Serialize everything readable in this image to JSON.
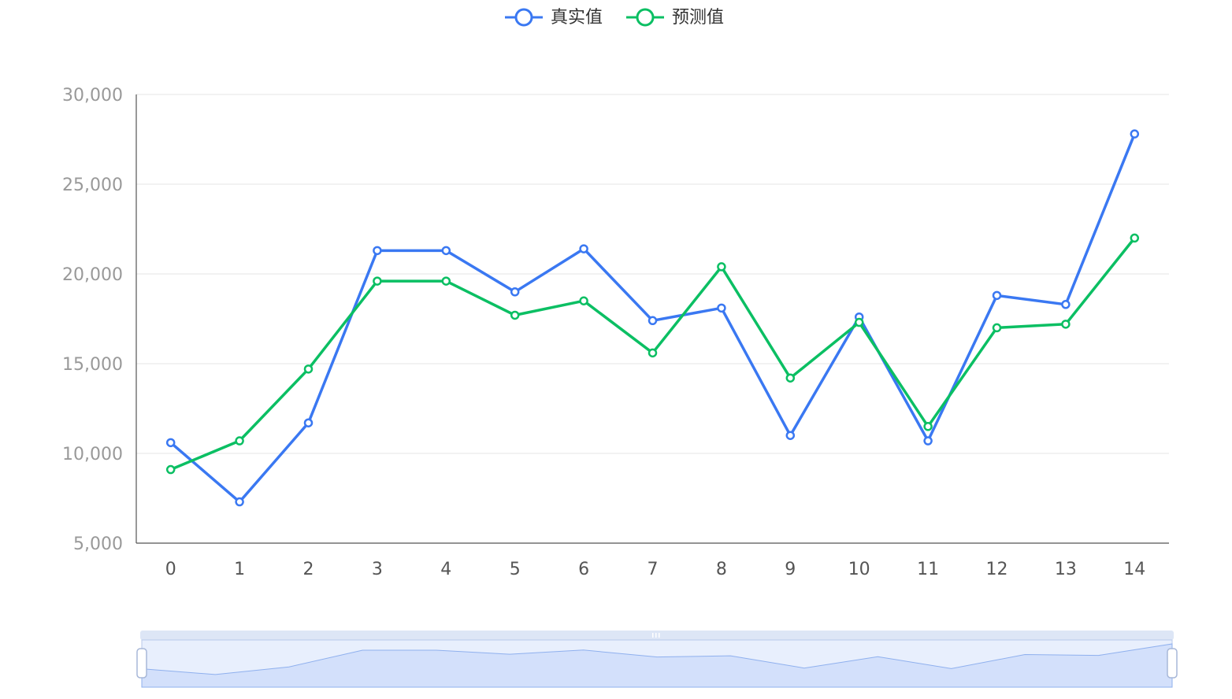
{
  "legend": {
    "items": [
      {
        "label": "真实值",
        "color": "#3a78f2",
        "icon": "circle-line-icon"
      },
      {
        "label": "预测值",
        "color": "#0bbf63",
        "icon": "circle-line-icon"
      }
    ]
  },
  "chart_data": {
    "type": "line",
    "title": "",
    "xlabel": "",
    "ylabel": "",
    "categories": [
      "0",
      "1",
      "2",
      "3",
      "4",
      "5",
      "6",
      "7",
      "8",
      "9",
      "10",
      "11",
      "12",
      "13",
      "14"
    ],
    "y_ticks": [
      "5,000",
      "10,000",
      "15,000",
      "20,000",
      "25,000",
      "30,000"
    ],
    "ylim": [
      5000,
      30000
    ],
    "grid": true,
    "legend_position": "top-center",
    "series": [
      {
        "name": "真实值",
        "color": "#3a78f2",
        "values": [
          10600,
          7300,
          11700,
          21300,
          21300,
          19000,
          21400,
          17400,
          18100,
          11000,
          17600,
          10700,
          18800,
          18300,
          27800
        ]
      },
      {
        "name": "预测值",
        "color": "#0bbf63",
        "values": [
          9100,
          10700,
          14700,
          19600,
          19600,
          17700,
          18500,
          15600,
          20400,
          14200,
          17300,
          11500,
          17000,
          17200,
          22000
        ]
      }
    ]
  },
  "data_zoom": {
    "range_start_percent": 0,
    "range_end_percent": 100,
    "fill_color": "#d3e0fb"
  }
}
